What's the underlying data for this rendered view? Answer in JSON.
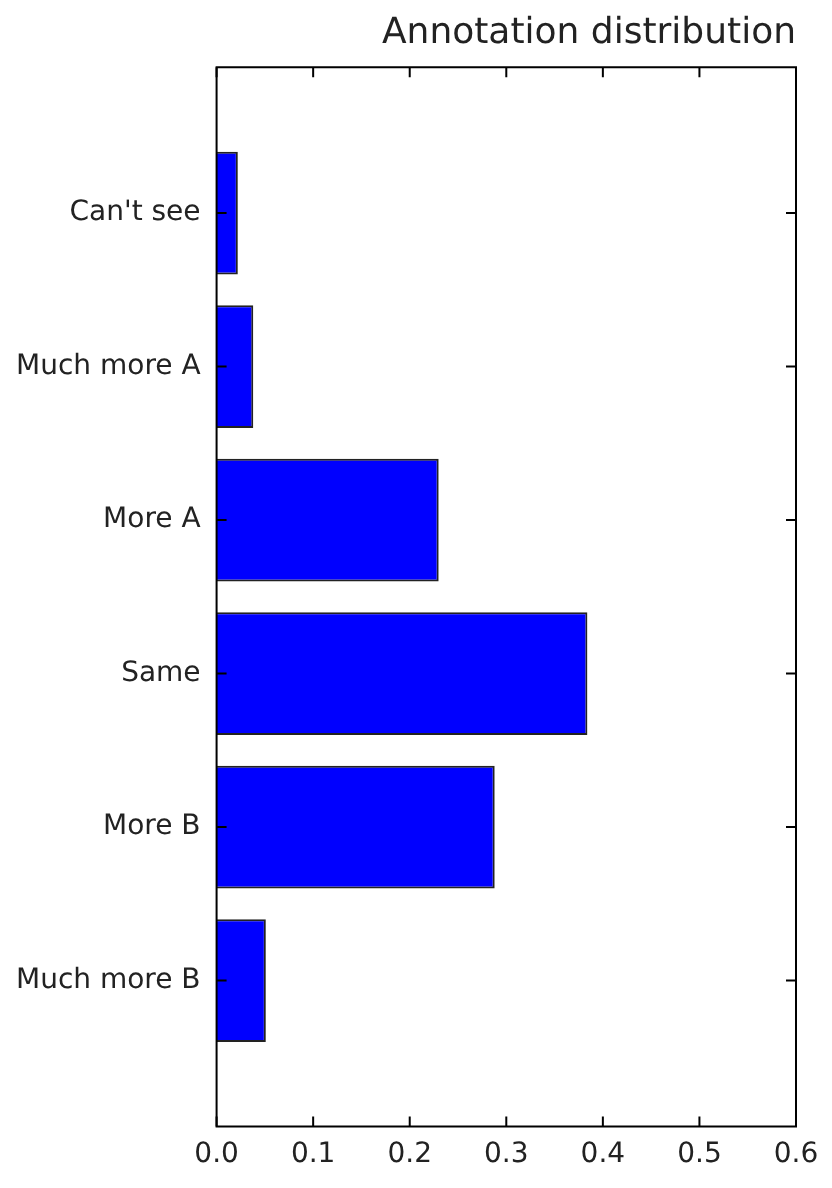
{
  "chart_data": {
    "type": "bar",
    "orientation": "horizontal",
    "title": "Annotation distribution",
    "categories": [
      "Can't see",
      "Much more A",
      "More A",
      "Same",
      "More B",
      "Much more B"
    ],
    "values": [
      0.022,
      0.038,
      0.23,
      0.384,
      0.288,
      0.051
    ],
    "color": "#0000ff",
    "xlim": [
      0,
      0.6
    ],
    "xticks": [
      {
        "value": 0,
        "label": "0.0"
      },
      0.1,
      0.2,
      0.3,
      0.4,
      0.5,
      0.6
    ],
    "grid": false,
    "legend": false
  }
}
